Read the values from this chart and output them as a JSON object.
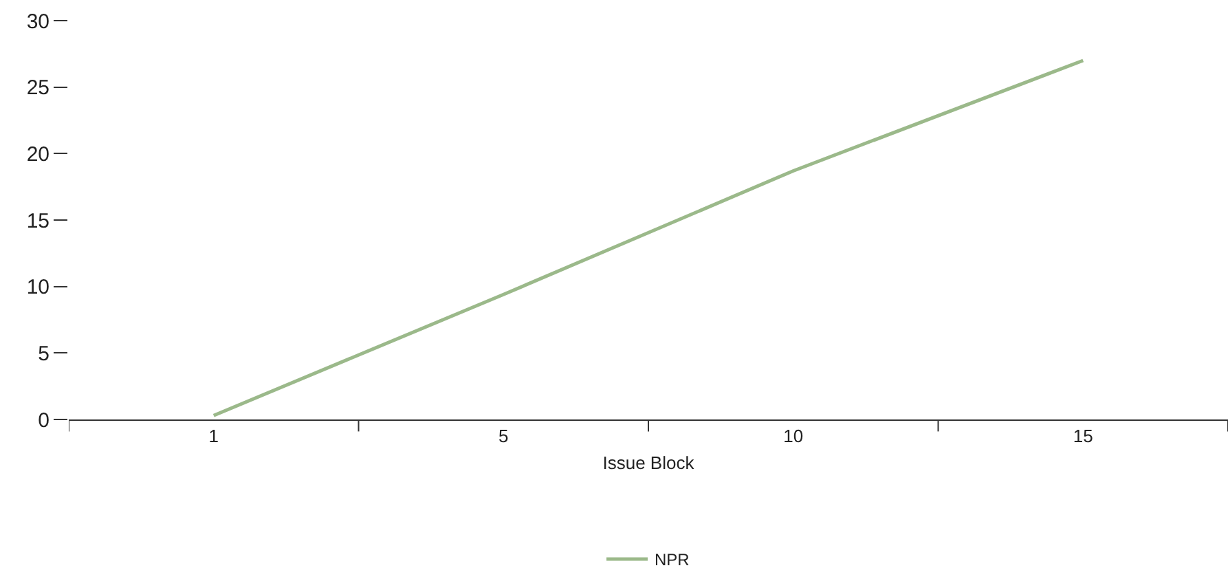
{
  "chart_data": {
    "type": "line",
    "xlabel": "Issue Block",
    "categories": [
      "1",
      "5",
      "10",
      "15"
    ],
    "series": [
      {
        "name": "NPR",
        "color": "#9bb98a",
        "values": [
          0.3,
          9.4,
          18.7,
          27
        ]
      }
    ],
    "ylim": [
      0,
      30
    ],
    "yticks": [
      0,
      5,
      10,
      15,
      20,
      25,
      30
    ],
    "grid": false,
    "legend": "bottom",
    "marker": "none",
    "line_style": "solid"
  }
}
